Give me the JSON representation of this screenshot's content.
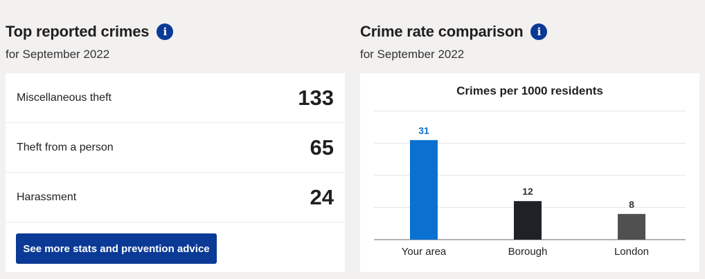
{
  "top_crimes": {
    "title": "Top reported crimes",
    "subtitle": "for September 2022",
    "items": [
      {
        "label": "Miscellaneous theft",
        "count": "133"
      },
      {
        "label": "Theft from a person",
        "count": "65"
      },
      {
        "label": "Harassment",
        "count": "24"
      }
    ],
    "cta_label": "See more stats and prevention advice"
  },
  "comparison": {
    "title": "Crime rate comparison",
    "subtitle": "for September 2022"
  },
  "icons": {
    "info": "info-icon"
  },
  "colors": {
    "brand": "#0b3a96",
    "your_area": "#0a71d0",
    "borough": "#1f2126",
    "london": "#505050"
  },
  "chart_data": {
    "type": "bar",
    "title": "Crimes per 1000 residents",
    "categories": [
      "Your area",
      "Borough",
      "London"
    ],
    "values": [
      31,
      12,
      8
    ],
    "bar_colors": [
      "#0a71d0",
      "#1f2126",
      "#505050"
    ],
    "label_colors": [
      "#0a71d0",
      "#333333",
      "#333333"
    ],
    "ylim": [
      0,
      40
    ],
    "grid": true,
    "legend": "none"
  }
}
